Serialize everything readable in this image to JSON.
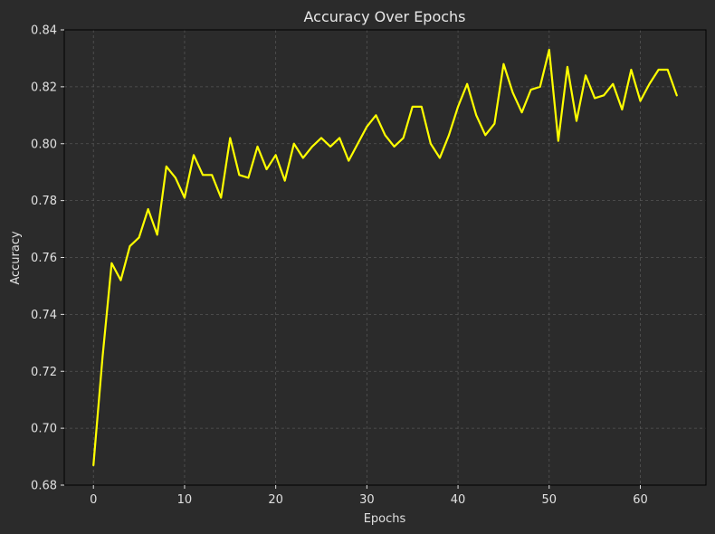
{
  "chart_data": {
    "type": "line",
    "title": "Accuracy Over Epochs",
    "xlabel": "Epochs",
    "ylabel": "Accuracy",
    "xlim": [
      -3.2,
      67.2
    ],
    "ylim": [
      0.68,
      0.84
    ],
    "xticks": [
      0,
      10,
      20,
      30,
      40,
      50,
      60
    ],
    "yticks": [
      0.68,
      0.7,
      0.72,
      0.74,
      0.76,
      0.78,
      0.8,
      0.82,
      0.84
    ],
    "xtick_labels": [
      "0",
      "10",
      "20",
      "30",
      "40",
      "50",
      "60"
    ],
    "ytick_labels": [
      "0.68",
      "0.70",
      "0.72",
      "0.74",
      "0.76",
      "0.78",
      "0.80",
      "0.82",
      "0.84"
    ],
    "grid": true,
    "background_color": "#2b2b2b",
    "series": [
      {
        "color": "#ffff00",
        "x": [
          0,
          1,
          2,
          3,
          4,
          5,
          6,
          7,
          8,
          9,
          10,
          11,
          12,
          13,
          14,
          15,
          16,
          17,
          18,
          19,
          20,
          21,
          22,
          23,
          24,
          25,
          26,
          27,
          28,
          29,
          30,
          31,
          32,
          33,
          34,
          35,
          36,
          37,
          38,
          39,
          40,
          41,
          42,
          43,
          44,
          45,
          46,
          47,
          48,
          49,
          50,
          51,
          52,
          53,
          54,
          55,
          56,
          57,
          58,
          59,
          60,
          61,
          62,
          63,
          64
        ],
        "values": [
          0.687,
          0.725,
          0.758,
          0.752,
          0.764,
          0.767,
          0.777,
          0.768,
          0.792,
          0.788,
          0.781,
          0.796,
          0.789,
          0.789,
          0.781,
          0.802,
          0.789,
          0.788,
          0.799,
          0.791,
          0.796,
          0.787,
          0.8,
          0.795,
          0.799,
          0.802,
          0.799,
          0.802,
          0.794,
          0.8,
          0.806,
          0.81,
          0.803,
          0.799,
          0.802,
          0.813,
          0.813,
          0.8,
          0.795,
          0.803,
          0.813,
          0.821,
          0.81,
          0.803,
          0.807,
          0.828,
          0.818,
          0.811,
          0.819,
          0.82,
          0.833,
          0.801,
          0.827,
          0.808,
          0.824,
          0.816,
          0.817,
          0.821,
          0.812,
          0.826,
          0.815,
          0.821,
          0.826,
          0.826,
          0.817
        ]
      }
    ]
  }
}
